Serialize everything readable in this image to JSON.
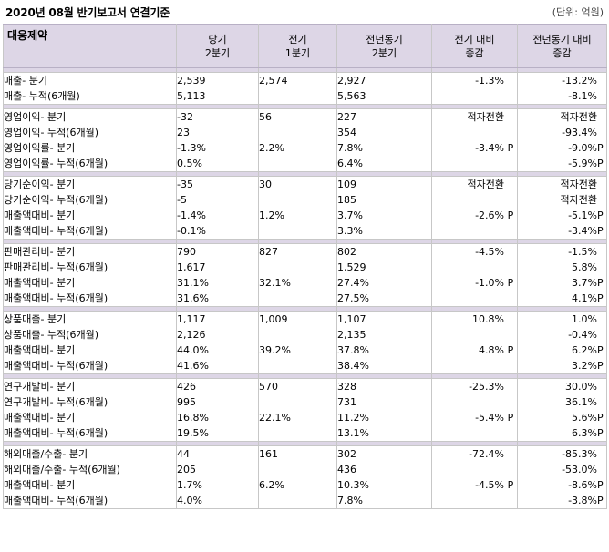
{
  "title": "2020년 08월 반기보고서 연결기준",
  "unit": "(단위: 억원)",
  "header": {
    "company": "대웅제약",
    "col1": [
      "당기",
      "2분기"
    ],
    "col2": [
      "전기",
      "1분기"
    ],
    "col3": [
      "전년동기",
      "2분기"
    ],
    "col4": [
      "전기 대비",
      "증감"
    ],
    "col5": [
      "전년동기 대비",
      "증감"
    ]
  },
  "groups": [
    {
      "rows": [
        {
          "label": "매출- 분기",
          "v1": "2,539",
          "v2": "2,574",
          "v3": "2,927",
          "v4": "-1.3%",
          "v5": "-13.2%"
        },
        {
          "label": "매출- 누적(6개월)",
          "v1": "5,113",
          "v2": "",
          "v3": "5,563",
          "v4": "",
          "v5": "-8.1%"
        }
      ]
    },
    {
      "rows": [
        {
          "label": "영업이익- 분기",
          "v1": "-32",
          "v2": "56",
          "v3": "227",
          "v4": "적자전환",
          "v5": "적자전환"
        },
        {
          "label": "영업이익- 누적(6개월)",
          "v1": "23",
          "v2": "",
          "v3": "354",
          "v4": "",
          "v5": "-93.4%"
        },
        {
          "label": "영업이익률- 분기",
          "v1": "-1.3%",
          "v2": "2.2%",
          "v3": "7.8%",
          "v4": "-3.4%",
          "v4p": "P",
          "v5": "-9.0%",
          "v5p": "P"
        },
        {
          "label": "영업이익률- 누적(6개월)",
          "v1": "0.5%",
          "v2": "",
          "v3": "6.4%",
          "v4": "",
          "v5": "-5.9%",
          "v5p": "P"
        }
      ]
    },
    {
      "rows": [
        {
          "label": "당기순이익- 분기",
          "v1": "-35",
          "v2": "30",
          "v3": "109",
          "v4": "적자전환",
          "v5": "적자전환"
        },
        {
          "label": "당기순이익- 누적(6개월)",
          "v1": "-5",
          "v2": "",
          "v3": "185",
          "v4": "",
          "v5": "적자전환"
        },
        {
          "label": "매출액대비- 분기",
          "v1": "-1.4%",
          "v2": "1.2%",
          "v3": "3.7%",
          "v4": "-2.6%",
          "v4p": "P",
          "v5": "-5.1%",
          "v5p": "P"
        },
        {
          "label": "매출액대비- 누적(6개월)",
          "v1": "-0.1%",
          "v2": "",
          "v3": "3.3%",
          "v4": "",
          "v5": "-3.4%",
          "v5p": "P"
        }
      ]
    },
    {
      "rows": [
        {
          "label": "판매관리비- 분기",
          "v1": "790",
          "v2": "827",
          "v3": "802",
          "v4": "-4.5%",
          "v5": "-1.5%"
        },
        {
          "label": "판매관리비- 누적(6개월)",
          "v1": "1,617",
          "v2": "",
          "v3": "1,529",
          "v4": "",
          "v5": "5.8%"
        },
        {
          "label": "매출액대비- 분기",
          "v1": "31.1%",
          "v2": "32.1%",
          "v3": "27.4%",
          "v4": "-1.0%",
          "v4p": "P",
          "v5": "3.7%",
          "v5p": "P"
        },
        {
          "label": "매출액대비- 누적(6개월)",
          "v1": "31.6%",
          "v2": "",
          "v3": "27.5%",
          "v4": "",
          "v5": "4.1%",
          "v5p": "P"
        }
      ]
    },
    {
      "rows": [
        {
          "label": "상품매출- 분기",
          "v1": "1,117",
          "v2": "1,009",
          "v3": "1,107",
          "v4": "10.8%",
          "v5": "1.0%"
        },
        {
          "label": "상품매출- 누적(6개월)",
          "v1": "2,126",
          "v2": "",
          "v3": "2,135",
          "v4": "",
          "v5": "-0.4%"
        },
        {
          "label": "매출액대비- 분기",
          "v1": "44.0%",
          "v2": "39.2%",
          "v3": "37.8%",
          "v4": "4.8%",
          "v4p": "P",
          "v5": "6.2%",
          "v5p": "P"
        },
        {
          "label": "매출액대비- 누적(6개월)",
          "v1": "41.6%",
          "v2": "",
          "v3": "38.4%",
          "v4": "",
          "v5": "3.2%",
          "v5p": "P"
        }
      ]
    },
    {
      "rows": [
        {
          "label": "연구개발비- 분기",
          "v1": "426",
          "v2": "570",
          "v3": "328",
          "v4": "-25.3%",
          "v5": "30.0%"
        },
        {
          "label": "연구개발비- 누적(6개월)",
          "v1": "995",
          "v2": "",
          "v3": "731",
          "v4": "",
          "v5": "36.1%"
        },
        {
          "label": "매출액대비- 분기",
          "v1": "16.8%",
          "v2": "22.1%",
          "v3": "11.2%",
          "v4": "-5.4%",
          "v4p": "P",
          "v5": "5.6%",
          "v5p": "P"
        },
        {
          "label": "매출액대비- 누적(6개월)",
          "v1": "19.5%",
          "v2": "",
          "v3": "13.1%",
          "v4": "",
          "v5": "6.3%",
          "v5p": "P"
        }
      ]
    },
    {
      "rows": [
        {
          "label": "해외매출/수출- 분기",
          "v1": "44",
          "v2": "161",
          "v3": "302",
          "v4": "-72.4%",
          "v5": "-85.3%"
        },
        {
          "label": "해외매출/수출- 누적(6개월)",
          "v1": "205",
          "v2": "",
          "v3": "436",
          "v4": "",
          "v5": "-53.0%"
        },
        {
          "label": "매출액대비- 분기",
          "v1": "1.7%",
          "v2": "6.2%",
          "v3": "10.3%",
          "v4": "-4.5%",
          "v4p": "P",
          "v5": "-8.6%",
          "v5p": "P"
        },
        {
          "label": "매출액대비- 누적(6개월)",
          "v1": "4.0%",
          "v2": "",
          "v3": "7.8%",
          "v4": "",
          "v5": "-3.8%",
          "v5p": "P"
        }
      ]
    }
  ]
}
